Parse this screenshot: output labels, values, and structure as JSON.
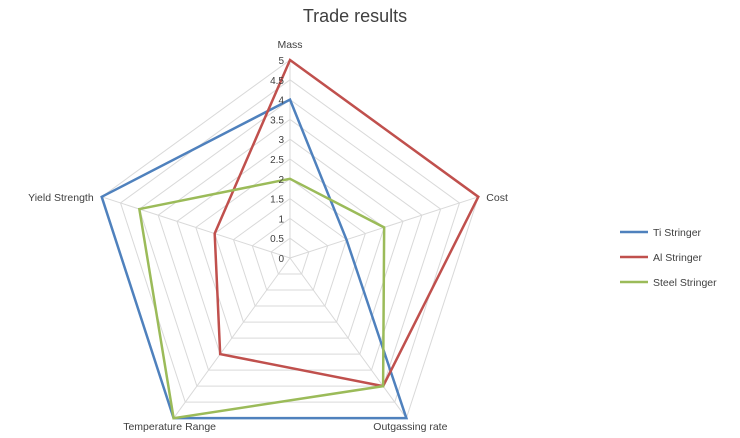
{
  "chart_data": {
    "type": "radar",
    "title": "Trade results",
    "axes": [
      "Mass",
      "Cost",
      "Outgassing rate",
      "Temperature Range",
      "Yield Strength"
    ],
    "ticks": [
      "0",
      "0.5",
      "1",
      "1.5",
      "2",
      "2.5",
      "3",
      "3.5",
      "4",
      "4.5",
      "5"
    ],
    "range": [
      0,
      5
    ],
    "grid": true,
    "legend_position": "right",
    "series": [
      {
        "name": "Ti Stringer",
        "color": "#4f81bd",
        "values": [
          4,
          1.5,
          5,
          5,
          5
        ]
      },
      {
        "name": "Al Stringer",
        "color": "#c0504d",
        "values": [
          5,
          5,
          4,
          3,
          2
        ]
      },
      {
        "name": "Steel Stringer",
        "color": "#9bbb59",
        "values": [
          2,
          2.5,
          4,
          5,
          4
        ]
      }
    ]
  }
}
